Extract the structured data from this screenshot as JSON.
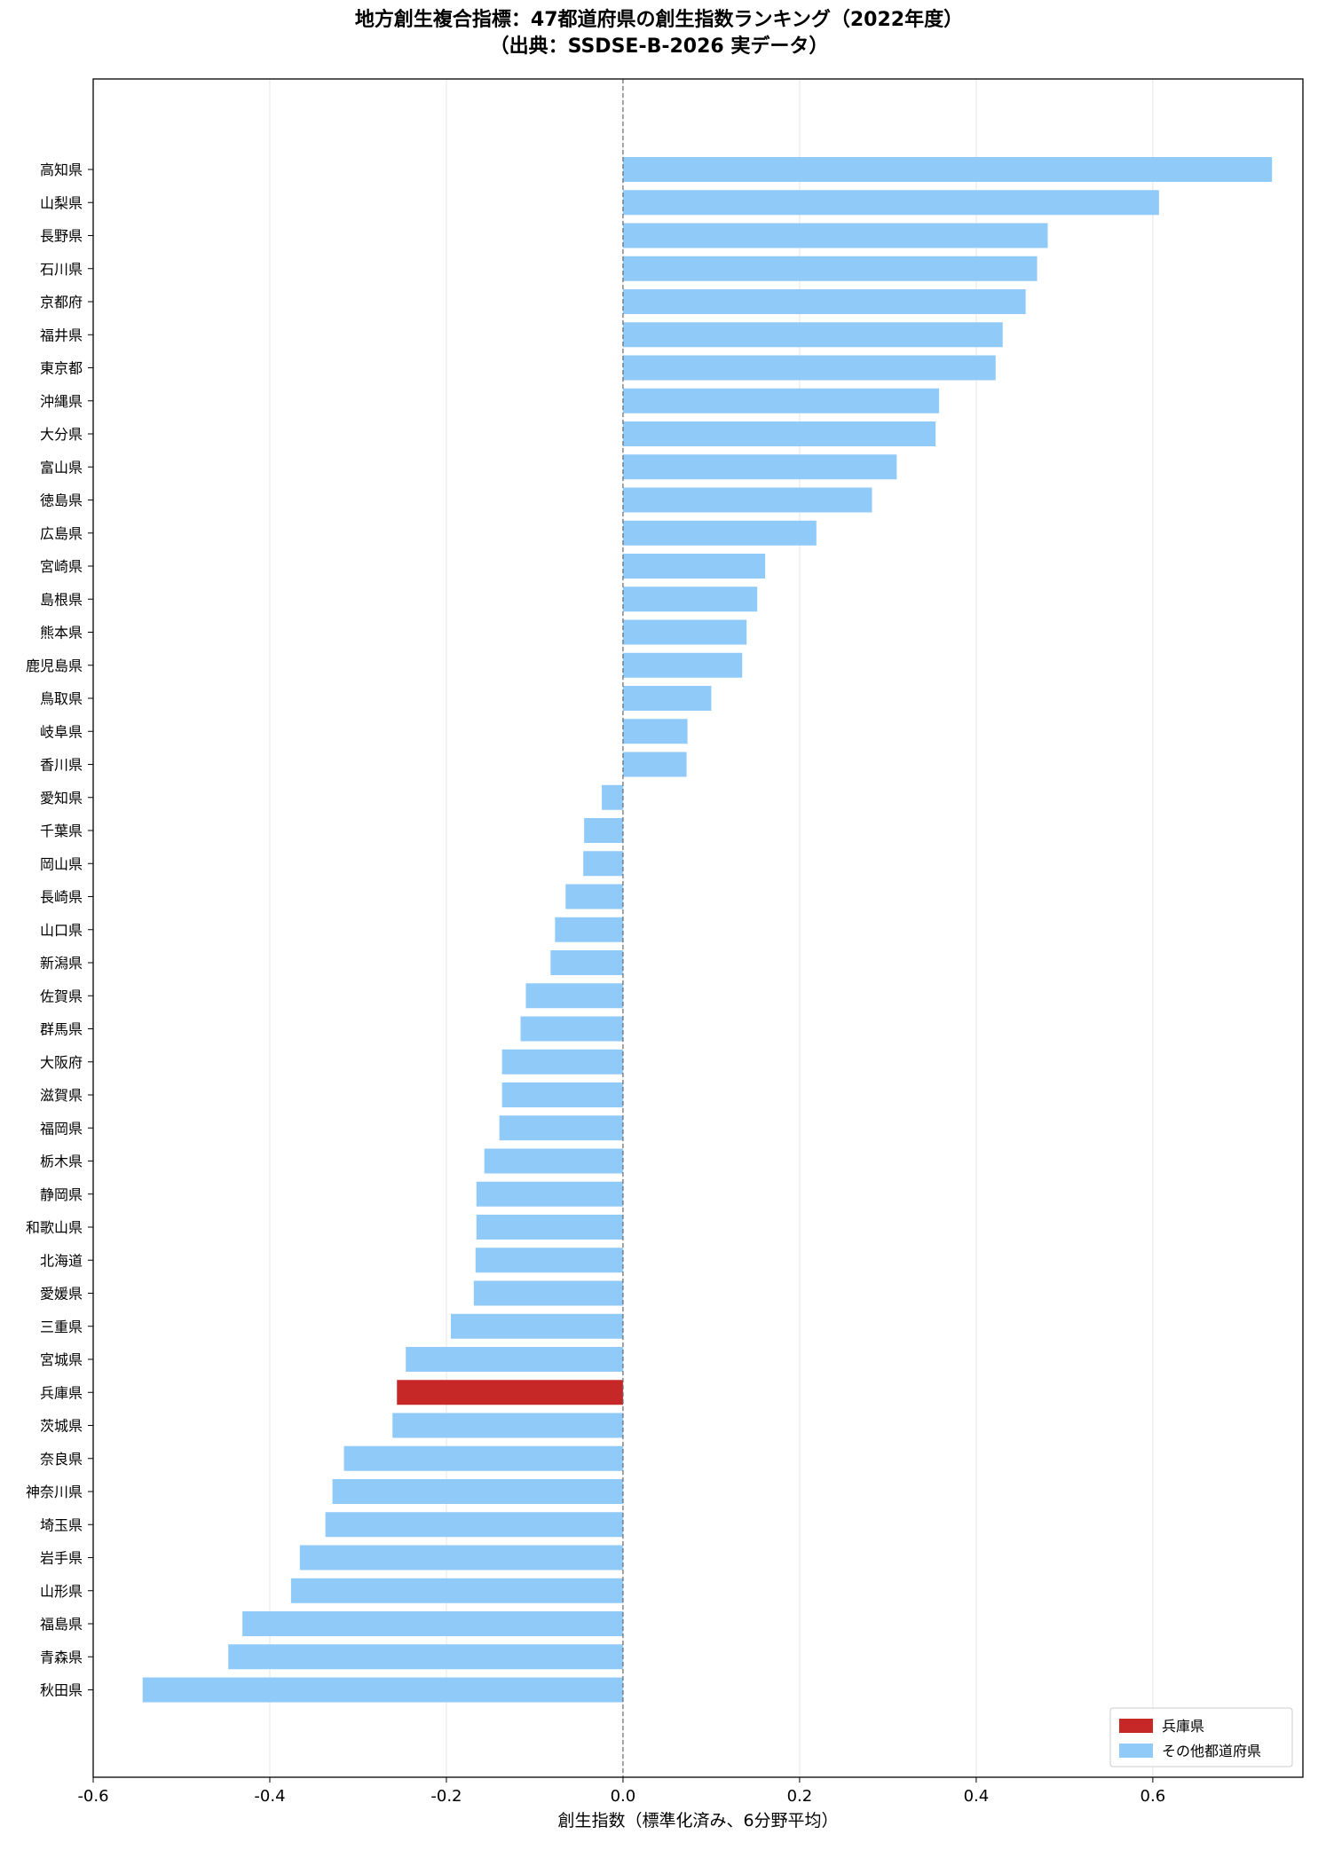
{
  "chart_data": {
    "type": "bar",
    "orientation": "horizontal",
    "title_line1": "地方創生複合指標：47都道府県の創生指数ランキング（2022年度）",
    "title_line2": "（出典：SSDSE-B-2026 実データ）",
    "xlabel": "創生指数（標準化済み、6分野平均）",
    "xlim": [
      -0.6,
      0.77
    ],
    "xticks": [
      -0.6,
      -0.4,
      -0.2,
      0.0,
      0.2,
      0.4,
      0.6
    ],
    "xtick_labels": [
      "-0.6",
      "-0.4",
      "-0.2",
      "0.0",
      "0.2",
      "0.4",
      "0.6"
    ],
    "grid": "x",
    "reference_line": 0,
    "legend_position": "lower-right",
    "legend": [
      {
        "label": "兵庫県",
        "color": "#c62828"
      },
      {
        "label": "その他都道府県",
        "color": "#90caf9"
      }
    ],
    "highlight": "兵庫県",
    "colors": {
      "highlight": "#c62828",
      "other": "#90caf9"
    },
    "categories": [
      "高知県",
      "山梨県",
      "長野県",
      "石川県",
      "京都府",
      "福井県",
      "東京都",
      "沖縄県",
      "大分県",
      "富山県",
      "徳島県",
      "広島県",
      "宮崎県",
      "島根県",
      "熊本県",
      "鹿児島県",
      "鳥取県",
      "岐阜県",
      "香川県",
      "愛知県",
      "千葉県",
      "岡山県",
      "長崎県",
      "山口県",
      "新潟県",
      "佐賀県",
      "群馬県",
      "大阪府",
      "滋賀県",
      "福岡県",
      "栃木県",
      "静岡県",
      "和歌山県",
      "北海道",
      "愛媛県",
      "三重県",
      "宮城県",
      "兵庫県",
      "茨城県",
      "奈良県",
      "神奈川県",
      "埼玉県",
      "岩手県",
      "山形県",
      "福島県",
      "青森県",
      "秋田県"
    ],
    "values": [
      0.735,
      0.607,
      0.481,
      0.469,
      0.456,
      0.43,
      0.422,
      0.358,
      0.354,
      0.31,
      0.282,
      0.219,
      0.161,
      0.152,
      0.14,
      0.135,
      0.1,
      0.073,
      0.072,
      -0.024,
      -0.044,
      -0.045,
      -0.065,
      -0.077,
      -0.082,
      -0.11,
      -0.116,
      -0.137,
      -0.137,
      -0.14,
      -0.157,
      -0.166,
      -0.166,
      -0.167,
      -0.169,
      -0.195,
      -0.246,
      -0.256,
      -0.261,
      -0.316,
      -0.329,
      -0.337,
      -0.366,
      -0.376,
      -0.431,
      -0.447,
      -0.544
    ]
  }
}
